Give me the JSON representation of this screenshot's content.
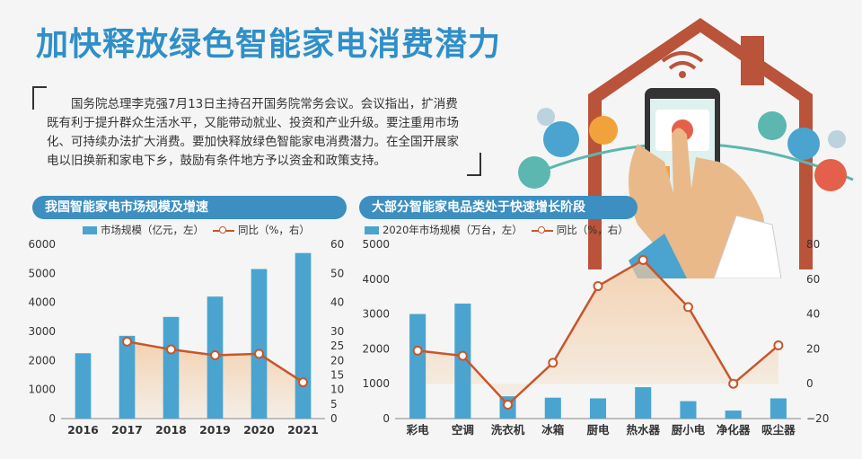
{
  "header": {
    "title": "加快释放绿色智能家电消费潜力",
    "intro": "国务院总理李克强7月13日主持召开国务院常务会议。会议指出，扩消费既有利于提升群众生活水平，又能带动就业、投资和产业升级。要注重用市场化、可持续办法扩大消费。要加快释放绿色智能家电消费潜力。在全国开展家电以旧换新和家电下乡，鼓励有条件地方予以资金和政策支持。"
  },
  "colors": {
    "bar": "#4aa4cf",
    "line": "#c8562a",
    "area": "#f3c79c",
    "title": "#2f8fc8",
    "pill": "#3c8fc0"
  },
  "illustration": {
    "icons": [
      "house-icon",
      "smartphone-icon",
      "wifi-icon",
      "hand-icon",
      "lock-icon",
      "thermometer-icon",
      "water-drop-icon",
      "fridge-icon",
      "lightbulb-icon",
      "car-icon",
      "gear-icon"
    ]
  },
  "chart_data": [
    {
      "type": "bar",
      "title": "我国智能家电市场规模及增速",
      "legend": [
        "市场规模（亿元，左）",
        "同比（%，右）"
      ],
      "categories": [
        "2016",
        "2017",
        "2018",
        "2019",
        "2020",
        "2021"
      ],
      "series": [
        {
          "name": "市场规模（亿元，左）",
          "type": "bar",
          "axis": "left",
          "values": [
            2250,
            2850,
            3500,
            4200,
            5150,
            5700
          ]
        },
        {
          "name": "同比（%，右）",
          "type": "line",
          "axis": "right",
          "values": [
            null,
            26.5,
            23.8,
            21.8,
            22.3,
            12.5
          ]
        }
      ],
      "ylim_left": [
        0,
        6000
      ],
      "yticks_left": [
        "0",
        "1000",
        "2000",
        "3000",
        "4000",
        "5000",
        "6000"
      ],
      "ylim_right": [
        0,
        60
      ],
      "yticks_right": [
        "0",
        "5",
        "10",
        "15",
        "20",
        "25",
        "30",
        "40",
        "50",
        "60"
      ],
      "legend_position": "top-left"
    },
    {
      "type": "bar",
      "title": "大部分智能家电品类处于快速增长阶段",
      "legend": [
        "2020年市场规模（万台，左）",
        "同比（%，右）"
      ],
      "categories": [
        "彩电",
        "空调",
        "洗衣机",
        "冰箱",
        "厨电",
        "热水器",
        "厨小电",
        "净化器",
        "吸尘器"
      ],
      "series": [
        {
          "name": "2020年市场规模（万台，左）",
          "type": "bar",
          "axis": "left",
          "values": [
            3000,
            3300,
            640,
            600,
            580,
            900,
            500,
            230,
            580
          ]
        },
        {
          "name": "同比（%，右）",
          "type": "line",
          "axis": "right",
          "values": [
            19,
            16,
            -12,
            12,
            56,
            71,
            44,
            0,
            22
          ]
        }
      ],
      "ylim_left": [
        0,
        5000
      ],
      "yticks_left": [
        "0",
        "1000",
        "2000",
        "3000",
        "4000",
        "5000"
      ],
      "ylim_right": [
        -20,
        80
      ],
      "yticks_right": [
        "-20",
        "0",
        "20",
        "40",
        "60",
        "80"
      ],
      "legend_position": "top-left"
    }
  ]
}
